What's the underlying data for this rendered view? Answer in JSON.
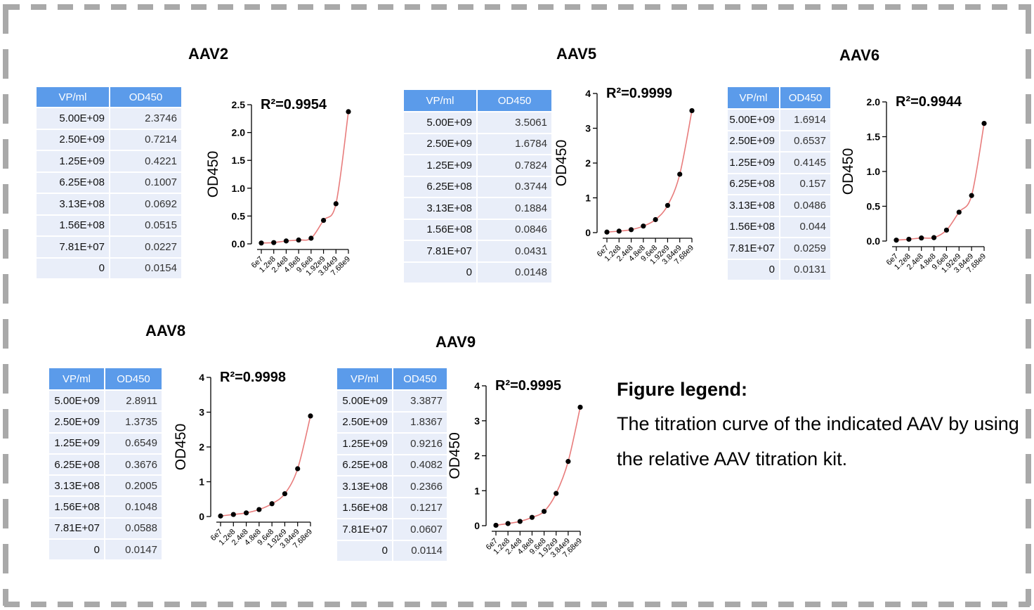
{
  "panels": [
    {
      "title": "AAV2",
      "table": {
        "headers": [
          "VP/ml",
          "OD450"
        ],
        "rows": [
          [
            "5.00E+09",
            "2.3746"
          ],
          [
            "2.50E+09",
            "0.7214"
          ],
          [
            "1.25E+09",
            "0.4221"
          ],
          [
            "6.25E+08",
            "0.1007"
          ],
          [
            "3.13E+08",
            "0.0692"
          ],
          [
            "1.56E+08",
            "0.0515"
          ],
          [
            "7.81E+07",
            "0.0227"
          ],
          [
            "0",
            "0.0154"
          ]
        ]
      }
    },
    {
      "title": "AAV5",
      "table": {
        "headers": [
          "VP/ml",
          "OD450"
        ],
        "rows": [
          [
            "5.00E+09",
            "3.5061"
          ],
          [
            "2.50E+09",
            "1.6784"
          ],
          [
            "1.25E+09",
            "0.7824"
          ],
          [
            "6.25E+08",
            "0.3744"
          ],
          [
            "3.13E+08",
            "0.1884"
          ],
          [
            "1.56E+08",
            "0.0846"
          ],
          [
            "7.81E+07",
            "0.0431"
          ],
          [
            "0",
            "0.0148"
          ]
        ]
      }
    },
    {
      "title": "AAV6",
      "table": {
        "headers": [
          "VP/ml",
          "OD450"
        ],
        "rows": [
          [
            "5.00E+09",
            "1.6914"
          ],
          [
            "2.50E+09",
            "0.6537"
          ],
          [
            "1.25E+09",
            "0.4145"
          ],
          [
            "6.25E+08",
            "0.157"
          ],
          [
            "3.13E+08",
            "0.0486"
          ],
          [
            "1.56E+08",
            "0.044"
          ],
          [
            "7.81E+07",
            "0.0259"
          ],
          [
            "0",
            "0.0131"
          ]
        ]
      }
    },
    {
      "title": "AAV8",
      "table": {
        "headers": [
          "VP/ml",
          "OD450"
        ],
        "rows": [
          [
            "5.00E+09",
            "2.8911"
          ],
          [
            "2.50E+09",
            "1.3735"
          ],
          [
            "1.25E+09",
            "0.6549"
          ],
          [
            "6.25E+08",
            "0.3676"
          ],
          [
            "3.13E+08",
            "0.2005"
          ],
          [
            "1.56E+08",
            "0.1048"
          ],
          [
            "7.81E+07",
            "0.0588"
          ],
          [
            "0",
            "0.0147"
          ]
        ]
      }
    },
    {
      "title": "AAV9",
      "table": {
        "headers": [
          "VP/ml",
          "OD450"
        ],
        "rows": [
          [
            "5.00E+09",
            "3.3877"
          ],
          [
            "2.50E+09",
            "1.8367"
          ],
          [
            "1.25E+09",
            "0.9216"
          ],
          [
            "6.25E+08",
            "0.4082"
          ],
          [
            "3.13E+08",
            "0.2366"
          ],
          [
            "1.56E+08",
            "0.1217"
          ],
          [
            "7.81E+07",
            "0.0607"
          ],
          [
            "0",
            "0.0114"
          ]
        ]
      }
    }
  ],
  "legend": {
    "title": "Figure legend:",
    "text": "The titration curve of the indicated AAV by using the relative AAV titration kit."
  },
  "chart_data": [
    {
      "type": "scatter",
      "panel": "AAV2",
      "annotation": "R²=0.9954",
      "ylabel": "OD450",
      "categories": [
        "6e7",
        "1.2e8",
        "2.4e8",
        "4.8e8",
        "9.6e8",
        "1.92e9",
        "3.84e9",
        "7.68e9"
      ],
      "values": [
        0.015,
        0.023,
        0.052,
        0.069,
        0.101,
        0.422,
        0.721,
        2.375
      ],
      "ylim": [
        0,
        2.5
      ],
      "yticks": [
        "0.0",
        "0.5",
        "1.0",
        "1.5",
        "2.0",
        "2.5"
      ],
      "fit_curve": true,
      "grid": false,
      "colors": {
        "fit": "#e87c7c",
        "points": "#000000"
      }
    },
    {
      "type": "scatter",
      "panel": "AAV5",
      "annotation": "R²=0.9999",
      "ylabel": "OD450",
      "categories": [
        "6e7",
        "1.2e8",
        "2.4e8",
        "4.8e8",
        "9.6e8",
        "1.92e9",
        "3.84e9",
        "7.68e9"
      ],
      "values": [
        0.015,
        0.043,
        0.085,
        0.188,
        0.374,
        0.782,
        1.678,
        3.506
      ],
      "ylim": [
        0,
        4
      ],
      "yticks": [
        "0",
        "1",
        "2",
        "3",
        "4"
      ],
      "fit_curve": true,
      "grid": false,
      "colors": {
        "fit": "#e87c7c",
        "points": "#000000"
      }
    },
    {
      "type": "scatter",
      "panel": "AAV6",
      "annotation": "R²=0.9944",
      "ylabel": "OD450",
      "categories": [
        "6e7",
        "1.2e8",
        "2.4e8",
        "4.8e8",
        "9.6e8",
        "1.92e9",
        "3.84e9",
        "7.68e9"
      ],
      "values": [
        0.013,
        0.026,
        0.044,
        0.049,
        0.157,
        0.415,
        0.654,
        1.691
      ],
      "ylim": [
        0,
        2.0
      ],
      "yticks": [
        "0.0",
        "0.5",
        "1.0",
        "1.5",
        "2.0"
      ],
      "fit_curve": true,
      "grid": false,
      "colors": {
        "fit": "#e87c7c",
        "points": "#000000"
      }
    },
    {
      "type": "scatter",
      "panel": "AAV8",
      "annotation": "R²=0.9998",
      "ylabel": "OD450",
      "categories": [
        "6e7",
        "1.2e8",
        "2.4e8",
        "4.8e8",
        "9.6e8",
        "1.92e9",
        "3.84e9",
        "7.68e9"
      ],
      "values": [
        0.015,
        0.059,
        0.105,
        0.201,
        0.368,
        0.655,
        1.374,
        2.891
      ],
      "ylim": [
        0,
        4
      ],
      "yticks": [
        "0",
        "1",
        "2",
        "3",
        "4"
      ],
      "fit_curve": true,
      "grid": false,
      "colors": {
        "fit": "#e87c7c",
        "points": "#000000"
      }
    },
    {
      "type": "scatter",
      "panel": "AAV9",
      "annotation": "R²=0.9995",
      "ylabel": "OD450",
      "categories": [
        "6e7",
        "1.2e8",
        "2.4e8",
        "4.8e8",
        "9.6e8",
        "1.92e9",
        "3.84e9",
        "7.68e9"
      ],
      "values": [
        0.011,
        0.061,
        0.122,
        0.237,
        0.408,
        0.922,
        1.837,
        3.388
      ],
      "ylim": [
        0,
        4
      ],
      "yticks": [
        "0",
        "1",
        "2",
        "3",
        "4"
      ],
      "fit_curve": true,
      "grid": false,
      "colors": {
        "fit": "#e87c7c",
        "points": "#000000"
      }
    }
  ]
}
